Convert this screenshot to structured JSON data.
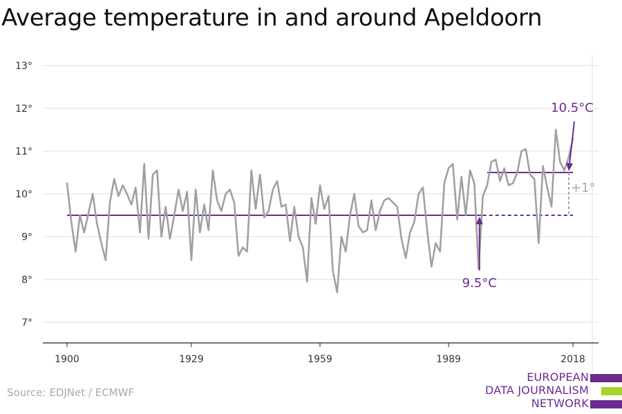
{
  "chart_data": {
    "type": "line",
    "title": "Average temperature in and around Apeldoorn",
    "xlabel": "",
    "ylabel": "",
    "xlim": [
      1900,
      2018
    ],
    "ylim": [
      7,
      13
    ],
    "xticks": [
      1900,
      1929,
      1959,
      1989,
      2018
    ],
    "yticks": [
      7,
      8,
      9,
      10,
      11,
      12,
      13
    ],
    "ytick_suffix": "°",
    "grid": "horizontal",
    "series": [
      {
        "color": "#a0a0a0",
        "x": [
          1900,
          1901,
          1902,
          1903,
          1904,
          1905,
          1906,
          1907,
          1908,
          1909,
          1910,
          1911,
          1912,
          1913,
          1914,
          1915,
          1916,
          1917,
          1918,
          1919,
          1920,
          1921,
          1922,
          1923,
          1924,
          1925,
          1926,
          1927,
          1928,
          1929,
          1930,
          1931,
          1932,
          1933,
          1934,
          1935,
          1936,
          1937,
          1938,
          1939,
          1940,
          1941,
          1942,
          1943,
          1944,
          1945,
          1946,
          1947,
          1948,
          1949,
          1950,
          1951,
          1952,
          1953,
          1954,
          1955,
          1956,
          1957,
          1958,
          1959,
          1960,
          1961,
          1962,
          1963,
          1964,
          1965,
          1966,
          1967,
          1968,
          1969,
          1970,
          1971,
          1972,
          1973,
          1974,
          1975,
          1976,
          1977,
          1978,
          1979,
          1980,
          1981,
          1982,
          1983,
          1984,
          1985,
          1986,
          1987,
          1988,
          1989,
          1990,
          1991,
          1992,
          1993,
          1994,
          1995,
          1996,
          1997,
          1998,
          1999,
          2000,
          2001,
          2002,
          2003,
          2004,
          2005,
          2006,
          2007,
          2008,
          2009,
          2010,
          2011,
          2012,
          2013,
          2014,
          2015,
          2016,
          2017,
          2018
        ],
        "y": [
          10.25,
          9.35,
          8.65,
          9.5,
          9.1,
          9.55,
          10.0,
          9.3,
          8.85,
          8.45,
          9.8,
          10.35,
          9.95,
          10.2,
          10.0,
          9.75,
          10.15,
          9.1,
          10.7,
          8.95,
          10.45,
          10.55,
          9.0,
          9.7,
          8.95,
          9.5,
          10.1,
          9.6,
          10.05,
          8.45,
          10.1,
          9.1,
          9.75,
          9.15,
          10.55,
          9.85,
          9.6,
          10.0,
          10.1,
          9.8,
          8.55,
          8.75,
          8.65,
          10.55,
          9.65,
          10.45,
          9.45,
          9.6,
          10.1,
          10.3,
          9.7,
          9.75,
          8.9,
          9.7,
          9.0,
          8.75,
          7.95,
          9.9,
          9.3,
          10.2,
          9.65,
          9.95,
          8.2,
          7.7,
          9.0,
          8.65,
          9.5,
          10.0,
          9.25,
          9.1,
          9.15,
          9.85,
          9.15,
          9.6,
          9.85,
          9.9,
          9.8,
          9.7,
          8.95,
          8.5,
          9.1,
          9.35,
          10.0,
          10.15,
          9.15,
          8.3,
          8.85,
          8.65,
          10.25,
          10.6,
          10.7,
          9.4,
          10.4,
          9.5,
          10.55,
          10.25,
          8.25,
          9.95,
          10.2,
          10.75,
          10.8,
          10.3,
          10.6,
          10.2,
          10.25,
          10.5,
          11.0,
          11.05,
          10.45,
          10.35,
          8.85,
          10.65,
          10.15,
          9.7,
          11.5,
          10.75,
          10.55,
          10.85,
          11.3
        ]
      }
    ],
    "reference_lines": [
      {
        "value": 9.5,
        "x": [
          1900,
          1997
        ],
        "style": "solid",
        "color": "#6b2c8f"
      },
      {
        "value": 9.5,
        "x": [
          1997,
          2018
        ],
        "style": "dashed",
        "color": "#6b2c8f"
      },
      {
        "value": 10.5,
        "x": [
          1998,
          2018
        ],
        "style": "solid",
        "color": "#6b2c8f"
      }
    ],
    "annotations": {
      "low_label": "9.5°C",
      "high_label": "10.5°C",
      "diff_label": "+1°",
      "accent_color": "#6b2c8f",
      "diff_color": "#a8a8a8"
    }
  },
  "source": "Source: EDJNet / ECMWF",
  "logo": {
    "lines": [
      "EUROPEAN",
      "DATA JOURNALISM",
      "NETWORK"
    ],
    "purple": "#6b2c8f",
    "green": "#a8d22c"
  }
}
